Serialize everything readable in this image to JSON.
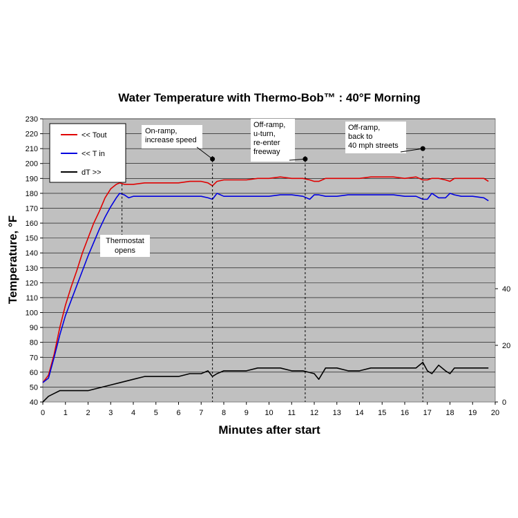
{
  "chart_data": {
    "type": "line",
    "title": "Water Temperature with Thermo-Bob™ :  40°F Morning",
    "xlabel": "Minutes after start",
    "ylabel": "Temperature, °F",
    "xlim": [
      0,
      20
    ],
    "ylim": [
      40,
      230
    ],
    "y2lim": [
      0,
      100
    ],
    "x_ticks": [
      "0",
      "1",
      "2",
      "3",
      "4",
      "5",
      "6",
      "7",
      "8",
      "9",
      "10",
      "11",
      "12",
      "13",
      "14",
      "15",
      "16",
      "17",
      "18",
      "19",
      "20"
    ],
    "y_ticks": [
      "40",
      "50",
      "60",
      "70",
      "80",
      "90",
      "100",
      "110",
      "120",
      "130",
      "140",
      "150",
      "160",
      "170",
      "180",
      "190",
      "200",
      "210",
      "220",
      "230"
    ],
    "y2_ticks": [
      "0",
      "20",
      "40"
    ],
    "grid": true,
    "legend_position": "top-left",
    "colors": {
      "tout": "#e00000",
      "tin": "#0000e0",
      "dt": "#000000",
      "plot_bg": "#c0c0c0",
      "grid": "#000000"
    },
    "series": [
      {
        "name": "<< Tout",
        "axis": "left",
        "x": [
          0,
          0.25,
          0.5,
          0.75,
          1,
          1.25,
          1.5,
          1.75,
          2,
          2.25,
          2.5,
          2.75,
          3,
          3.25,
          3.4,
          3.6,
          3.8,
          4,
          4.5,
          5,
          5.5,
          6,
          6.5,
          7,
          7.3,
          7.5,
          7.7,
          8,
          8.5,
          9,
          9.5,
          10,
          10.5,
          11,
          11.5,
          11.8,
          12,
          12.2,
          12.5,
          13,
          13.5,
          14,
          14.5,
          15,
          15.5,
          16,
          16.5,
          16.8,
          17,
          17.2,
          17.5,
          17.8,
          18,
          18.2,
          18.5,
          19,
          19.5,
          19.7
        ],
        "values": [
          53,
          58,
          72,
          90,
          105,
          117,
          128,
          140,
          150,
          160,
          168,
          177,
          183,
          186,
          187,
          186,
          186,
          186,
          187,
          187,
          187,
          187,
          188,
          188,
          187,
          185,
          188,
          189,
          189,
          189,
          190,
          190,
          191,
          190,
          190,
          189,
          188,
          188,
          190,
          190,
          190,
          190,
          191,
          191,
          191,
          190,
          191,
          189,
          189,
          190,
          190,
          189,
          188,
          190,
          190,
          190,
          190,
          188
        ]
      },
      {
        "name": "<< T in",
        "axis": "left",
        "x": [
          0,
          0.25,
          0.5,
          0.75,
          1,
          1.25,
          1.5,
          1.75,
          2,
          2.25,
          2.5,
          2.75,
          3,
          3.25,
          3.4,
          3.6,
          3.8,
          4,
          4.5,
          5,
          5.5,
          6,
          6.5,
          7,
          7.3,
          7.5,
          7.7,
          8,
          8.5,
          9,
          9.5,
          10,
          10.5,
          11,
          11.5,
          11.8,
          12,
          12.2,
          12.5,
          13,
          13.5,
          14,
          14.5,
          15,
          15.5,
          16,
          16.5,
          16.8,
          17,
          17.2,
          17.5,
          17.8,
          18,
          18.2,
          18.5,
          19,
          19.5,
          19.7
        ],
        "values": [
          53,
          56,
          70,
          85,
          98,
          108,
          118,
          128,
          138,
          147,
          156,
          164,
          171,
          177,
          180,
          179,
          177,
          178,
          178,
          178,
          178,
          178,
          178,
          178,
          177,
          176,
          180,
          178,
          178,
          178,
          178,
          178,
          179,
          179,
          178,
          176,
          179,
          179,
          178,
          178,
          179,
          179,
          179,
          179,
          179,
          178,
          178,
          176,
          176,
          180,
          177,
          177,
          180,
          179,
          178,
          178,
          177,
          175
        ]
      },
      {
        "name": "dT >>",
        "axis": "right",
        "x": [
          0,
          0.25,
          0.5,
          0.75,
          1,
          1.5,
          2,
          2.5,
          3,
          3.5,
          4,
          4.5,
          5,
          5.5,
          6,
          6.5,
          7,
          7.3,
          7.5,
          7.7,
          8,
          8.5,
          9,
          9.5,
          10,
          10.5,
          11,
          11.5,
          12,
          12.2,
          12.5,
          13,
          13.5,
          14,
          14.5,
          15,
          15.5,
          16,
          16.5,
          16.8,
          17,
          17.2,
          17.5,
          17.8,
          18,
          18.2,
          18.5,
          19,
          19.5,
          19.7
        ],
        "values": [
          0,
          2,
          3,
          4,
          4,
          4,
          4,
          5,
          6,
          7,
          8,
          9,
          9,
          9,
          9,
          10,
          10,
          11,
          9,
          10,
          11,
          11,
          11,
          12,
          12,
          12,
          11,
          11,
          10,
          8,
          12,
          12,
          11,
          11,
          12,
          12,
          12,
          12,
          12,
          14,
          11,
          10,
          13,
          11,
          10,
          12,
          12,
          12,
          12,
          12
        ]
      }
    ],
    "annotations": [
      {
        "lines": [
          "Thermostat",
          "opens"
        ],
        "x": 3.5
      },
      {
        "lines": [
          "On-ramp,",
          "increase speed"
        ],
        "x": 7.5,
        "y": 203
      },
      {
        "lines": [
          "Off-ramp,",
          "u-turn,",
          "re-enter",
          "freeway"
        ],
        "x": 11.6,
        "y": 203
      },
      {
        "lines": [
          "Off-ramp,",
          "back to",
          "40 mph streets"
        ],
        "x": 16.8,
        "y": 210
      }
    ]
  }
}
